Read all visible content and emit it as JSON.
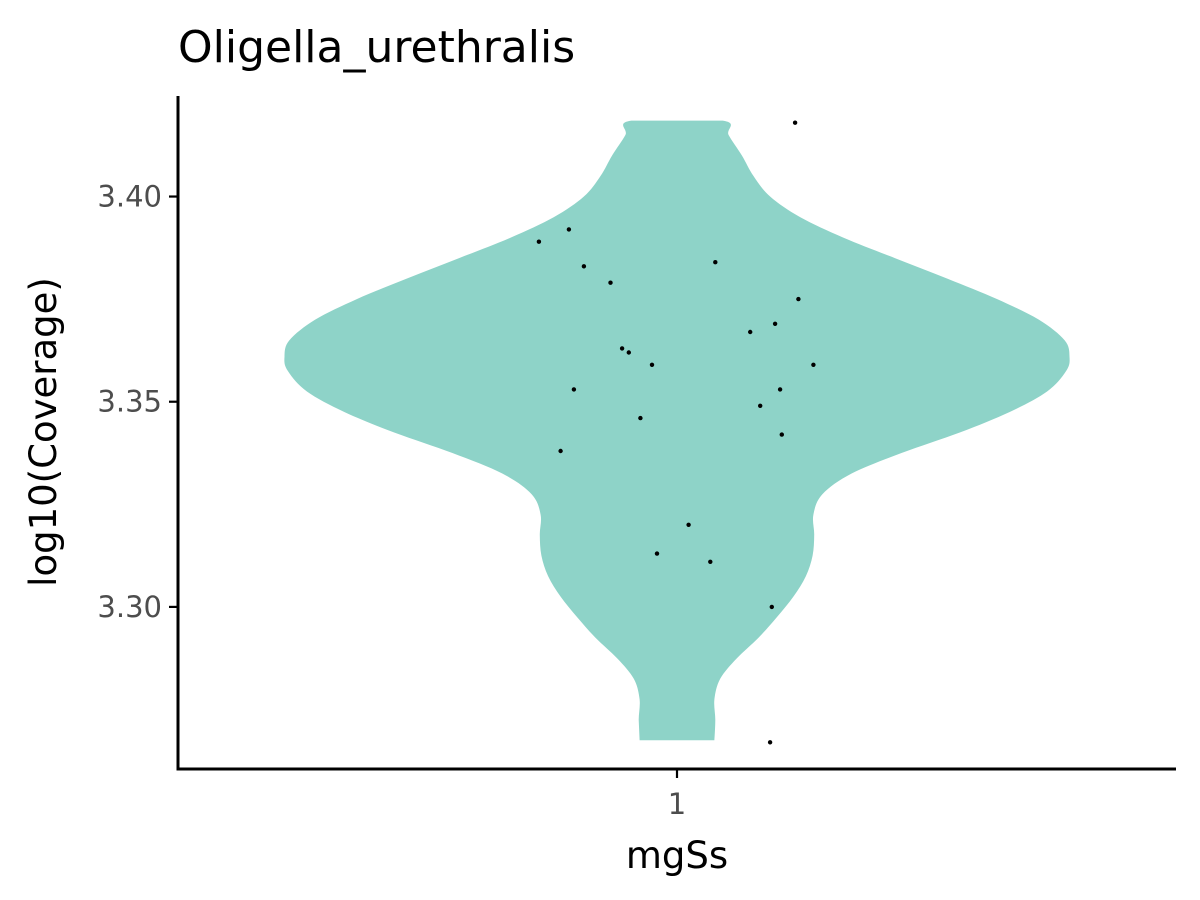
{
  "chart_data": {
    "type": "violin",
    "title": "Oligella_urethralis",
    "xlabel": "mgSs",
    "ylabel": "log10(Coverage)",
    "categories": [
      "1"
    ],
    "x_tick_labels": [
      "1"
    ],
    "y_ticks": [
      3.3,
      3.35,
      3.4
    ],
    "y_tick_labels": [
      "3.30",
      "3.35",
      "3.40"
    ],
    "ylim": [
      3.2605,
      3.4245
    ],
    "xlim": [
      0.4,
      1.6
    ],
    "grid": false,
    "legend": "none",
    "colors": {
      "violin_fill": "#8ED3C8",
      "points": "#000000",
      "axis": "#000000"
    },
    "violin": {
      "category": "1",
      "profile": [
        {
          "y": 3.2675,
          "half_width": 0.045
        },
        {
          "y": 3.2725,
          "half_width": 0.046
        },
        {
          "y": 3.2775,
          "half_width": 0.045
        },
        {
          "y": 3.2825,
          "half_width": 0.052
        },
        {
          "y": 3.2875,
          "half_width": 0.072
        },
        {
          "y": 3.2925,
          "half_width": 0.098
        },
        {
          "y": 3.2975,
          "half_width": 0.12
        },
        {
          "y": 3.3025,
          "half_width": 0.14
        },
        {
          "y": 3.3075,
          "half_width": 0.155
        },
        {
          "y": 3.3125,
          "half_width": 0.163
        },
        {
          "y": 3.3175,
          "half_width": 0.165
        },
        {
          "y": 3.3225,
          "half_width": 0.164
        },
        {
          "y": 3.3275,
          "half_width": 0.175
        },
        {
          "y": 3.3325,
          "half_width": 0.21
        },
        {
          "y": 3.3375,
          "half_width": 0.27
        },
        {
          "y": 3.3425,
          "half_width": 0.34
        },
        {
          "y": 3.3475,
          "half_width": 0.4
        },
        {
          "y": 3.3525,
          "half_width": 0.445
        },
        {
          "y": 3.3575,
          "half_width": 0.468
        },
        {
          "y": 3.361,
          "half_width": 0.472
        },
        {
          "y": 3.365,
          "half_width": 0.466
        },
        {
          "y": 3.37,
          "half_width": 0.435
        },
        {
          "y": 3.375,
          "half_width": 0.385
        },
        {
          "y": 3.38,
          "half_width": 0.325
        },
        {
          "y": 3.385,
          "half_width": 0.262
        },
        {
          "y": 3.39,
          "half_width": 0.2
        },
        {
          "y": 3.395,
          "half_width": 0.148
        },
        {
          "y": 3.4,
          "half_width": 0.112
        },
        {
          "y": 3.405,
          "half_width": 0.092
        },
        {
          "y": 3.41,
          "half_width": 0.078
        },
        {
          "y": 3.415,
          "half_width": 0.062
        },
        {
          "y": 3.4185,
          "half_width": 0.055
        }
      ]
    },
    "points": [
      {
        "x": 0.834,
        "y": 3.389
      },
      {
        "x": 0.87,
        "y": 3.392
      },
      {
        "x": 0.888,
        "y": 3.383
      },
      {
        "x": 0.92,
        "y": 3.379
      },
      {
        "x": 1.046,
        "y": 3.384
      },
      {
        "x": 1.146,
        "y": 3.375
      },
      {
        "x": 1.088,
        "y": 3.367
      },
      {
        "x": 1.118,
        "y": 3.369
      },
      {
        "x": 0.934,
        "y": 3.363
      },
      {
        "x": 0.942,
        "y": 3.362
      },
      {
        "x": 0.97,
        "y": 3.359
      },
      {
        "x": 1.164,
        "y": 3.359
      },
      {
        "x": 0.876,
        "y": 3.353
      },
      {
        "x": 1.124,
        "y": 3.353
      },
      {
        "x": 1.1,
        "y": 3.349
      },
      {
        "x": 0.956,
        "y": 3.346
      },
      {
        "x": 1.126,
        "y": 3.342
      },
      {
        "x": 0.86,
        "y": 3.338
      },
      {
        "x": 1.014,
        "y": 3.32
      },
      {
        "x": 0.976,
        "y": 3.313
      },
      {
        "x": 1.04,
        "y": 3.311
      },
      {
        "x": 1.114,
        "y": 3.3
      },
      {
        "x": 1.142,
        "y": 3.418
      },
      {
        "x": 1.112,
        "y": 3.267
      }
    ]
  }
}
